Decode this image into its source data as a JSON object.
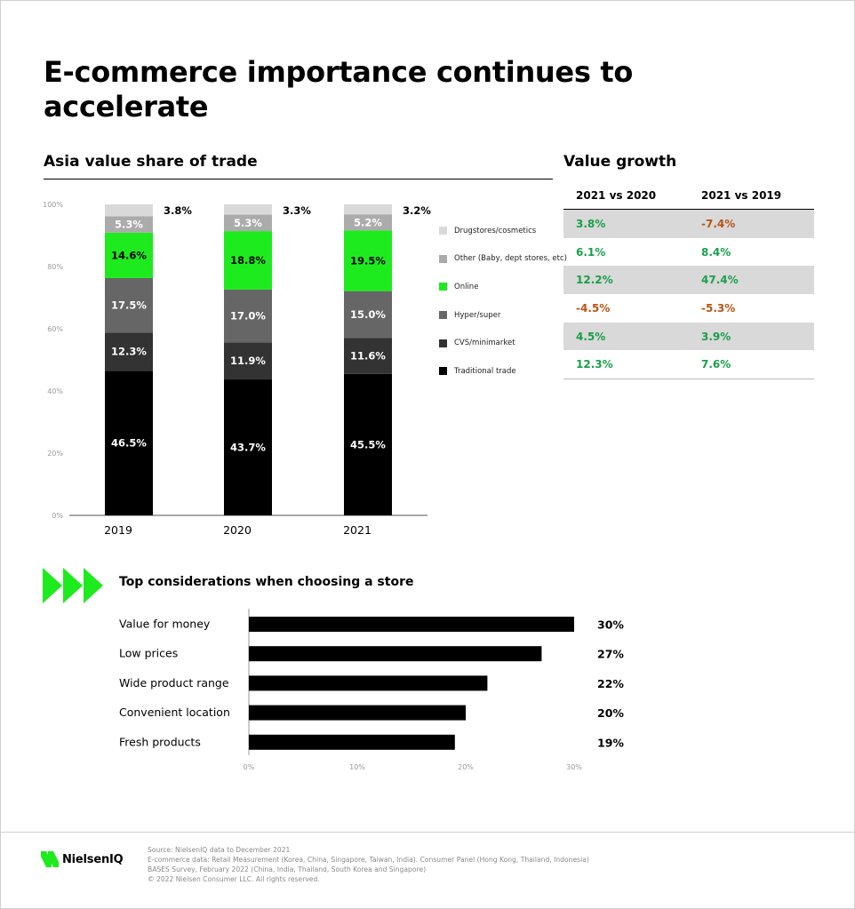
{
  "title": "E-commerce importance continues to accelerate",
  "colors": {
    "drugstores": "#d9d9d9",
    "other": "#ababab",
    "online": "#1eeb1e",
    "hyper": "#666666",
    "cvs": "#333333",
    "traditional": "#000000",
    "positive": "#1a9e4b",
    "negative": "#b85415",
    "accent": "#1eeb1e"
  },
  "share_chart": {
    "title": "Asia value share of trade",
    "legend": [
      {
        "label": "Drugstores/cosmetics",
        "color_key": "drugstores"
      },
      {
        "label": "Other (Baby, dept stores, etc)",
        "color_key": "other"
      },
      {
        "label": "Online",
        "color_key": "online"
      },
      {
        "label": "Hyper/super",
        "color_key": "hyper"
      },
      {
        "label": "CVS/minimarket",
        "color_key": "cvs"
      },
      {
        "label": "Traditional trade",
        "color_key": "traditional"
      }
    ]
  },
  "value_growth": {
    "title": "Value growth",
    "columns": [
      "2021 vs 2020",
      "2021 vs 2019"
    ],
    "rows": [
      [
        "3.8%",
        "-7.4%"
      ],
      [
        "6.1%",
        "8.4%"
      ],
      [
        "12.2%",
        "47.4%"
      ],
      [
        "-4.5%",
        "-5.3%"
      ],
      [
        "4.5%",
        "3.9%"
      ],
      [
        "12.3%",
        "7.6%"
      ]
    ]
  },
  "considerations": {
    "title": "Top considerations when choosing a  store"
  },
  "footer": {
    "logo": "NielsenIQ",
    "lines": [
      "Source: NielsenIQ data to December 2021",
      "E-commerce data: Retail Measurement (Korea, China, Singapore, Taiwan, India). Consumer Panel (Hong Kong, Thailand, Indonesia)",
      "BASES Survey, February 2022 (China, India, Thailand, South Korea and Singapore)",
      "© 2022 Nielsen Consumer LLC. All rights reserved."
    ]
  },
  "chart_data": [
    {
      "type": "bar",
      "stacked": true,
      "title": "Asia value share of trade",
      "categories": [
        "2019",
        "2020",
        "2021"
      ],
      "ylim": [
        0,
        100
      ],
      "yticks": [
        "0%",
        "20%",
        "40%",
        "60%",
        "80%",
        "100%"
      ],
      "series": [
        {
          "name": "Traditional trade",
          "color_key": "traditional",
          "values": [
            46.5,
            43.7,
            45.5
          ],
          "labels": [
            "46.5%",
            "43.7%",
            "45.5%"
          ]
        },
        {
          "name": "CVS/minimarket",
          "color_key": "cvs",
          "values": [
            12.3,
            11.9,
            11.6
          ],
          "labels": [
            "12.3%",
            "11.9%",
            "11.6%"
          ]
        },
        {
          "name": "Hyper/super",
          "color_key": "hyper",
          "values": [
            17.5,
            17.0,
            15.0
          ],
          "labels": [
            "17.5%",
            "17.0%",
            "15.0%"
          ]
        },
        {
          "name": "Online",
          "color_key": "online",
          "values": [
            14.6,
            18.8,
            19.5
          ],
          "labels": [
            "14.6%",
            "18.8%",
            "19.5%"
          ]
        },
        {
          "name": "Other (Baby, dept stores, etc)",
          "color_key": "other",
          "values": [
            5.3,
            5.3,
            5.2
          ],
          "labels": [
            "5.3%",
            "5.3%",
            "5.2%"
          ]
        },
        {
          "name": "Drugstores/cosmetics",
          "color_key": "drugstores",
          "values": [
            3.8,
            3.3,
            3.2
          ],
          "labels": [
            "3.8%",
            "3.3%",
            "3.2%"
          ]
        }
      ],
      "legend": "right",
      "grid": false
    },
    {
      "type": "bar",
      "orientation": "horizontal",
      "title": "Top considerations when choosing a  store",
      "categories": [
        "Value for money",
        "Low prices",
        "Wide product range",
        "Convenient location",
        "Fresh products"
      ],
      "values": [
        30,
        27,
        22,
        20,
        19
      ],
      "labels": [
        "30%",
        "27%",
        "22%",
        "20%",
        "19%"
      ],
      "xlim": [
        0,
        30
      ],
      "xticks": [
        "0%",
        "10%",
        "20%",
        "30%"
      ],
      "grid": false
    }
  ]
}
